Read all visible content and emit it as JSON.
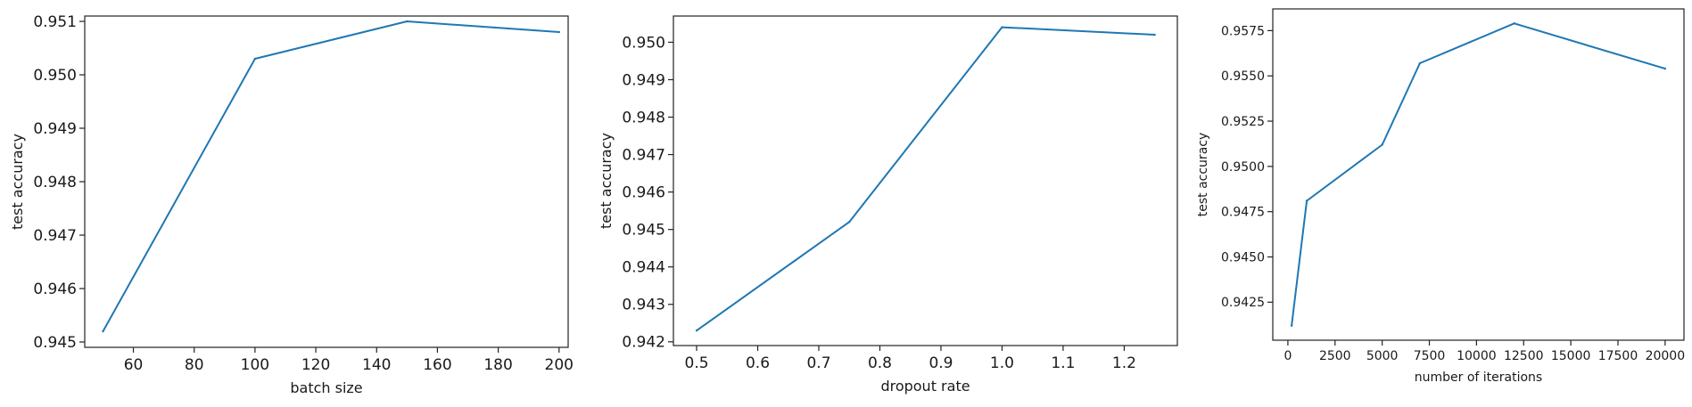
{
  "chart_data": [
    {
      "type": "line",
      "title": "",
      "xlabel": "batch size",
      "ylabel": "test accuracy",
      "x": [
        50,
        100,
        150,
        200
      ],
      "y": [
        0.9452,
        0.9503,
        0.951,
        0.9508
      ],
      "xlim": [
        44,
        203
      ],
      "ylim": [
        0.9449,
        0.9511
      ],
      "xticks": [
        60,
        80,
        100,
        120,
        140,
        160,
        180,
        200
      ],
      "xtick_labels": [
        "60",
        "80",
        "100",
        "120",
        "140",
        "160",
        "180",
        "200"
      ],
      "yticks": [
        0.945,
        0.946,
        0.947,
        0.948,
        0.949,
        0.95,
        0.951
      ],
      "ytick_labels": [
        "0.945",
        "0.946",
        "0.947",
        "0.948",
        "0.949",
        "0.950",
        "0.951"
      ],
      "color": "#1f77b4",
      "grid": false,
      "legend": false
    },
    {
      "type": "line",
      "title": "",
      "xlabel": "dropout rate",
      "ylabel": "test accuracy",
      "x": [
        0.5,
        0.75,
        1.0,
        1.25
      ],
      "y": [
        0.9423,
        0.9452,
        0.9504,
        0.9502
      ],
      "xlim": [
        0.462,
        1.287
      ],
      "ylim": [
        0.9419,
        0.9507
      ],
      "xticks": [
        0.5,
        0.6,
        0.7,
        0.8,
        0.9,
        1.0,
        1.1,
        1.2
      ],
      "xtick_labels": [
        "0.5",
        "0.6",
        "0.7",
        "0.8",
        "0.9",
        "1.0",
        "1.1",
        "1.2"
      ],
      "yticks": [
        0.942,
        0.943,
        0.944,
        0.945,
        0.946,
        0.947,
        0.948,
        0.949,
        0.95
      ],
      "ytick_labels": [
        "0.942",
        "0.943",
        "0.944",
        "0.945",
        "0.946",
        "0.947",
        "0.948",
        "0.949",
        "0.950"
      ],
      "color": "#1f77b4",
      "grid": false,
      "legend": false
    },
    {
      "type": "line",
      "title": "",
      "xlabel": "number of iterations",
      "ylabel": "test accuracy",
      "x": [
        200,
        1000,
        5000,
        7000,
        12000,
        20000
      ],
      "y": [
        0.9412,
        0.9481,
        0.9512,
        0.9557,
        0.9579,
        0.9554
      ],
      "xlim": [
        -800,
        21000
      ],
      "ylim": [
        0.9404,
        0.9587
      ],
      "xticks": [
        0,
        2500,
        5000,
        7500,
        10000,
        12500,
        15000,
        17500,
        20000
      ],
      "xtick_labels": [
        "0",
        "2500",
        "5000",
        "7500",
        "10000",
        "12500",
        "15000",
        "17500",
        "20000"
      ],
      "yticks": [
        0.9425,
        0.945,
        0.9475,
        0.95,
        0.9525,
        0.955,
        0.9575
      ],
      "ytick_labels": [
        "0.9425",
        "0.9450",
        "0.9475",
        "0.9500",
        "0.9525",
        "0.9550",
        "0.9575"
      ],
      "color": "#1f77b4",
      "grid": false,
      "legend": false
    }
  ]
}
